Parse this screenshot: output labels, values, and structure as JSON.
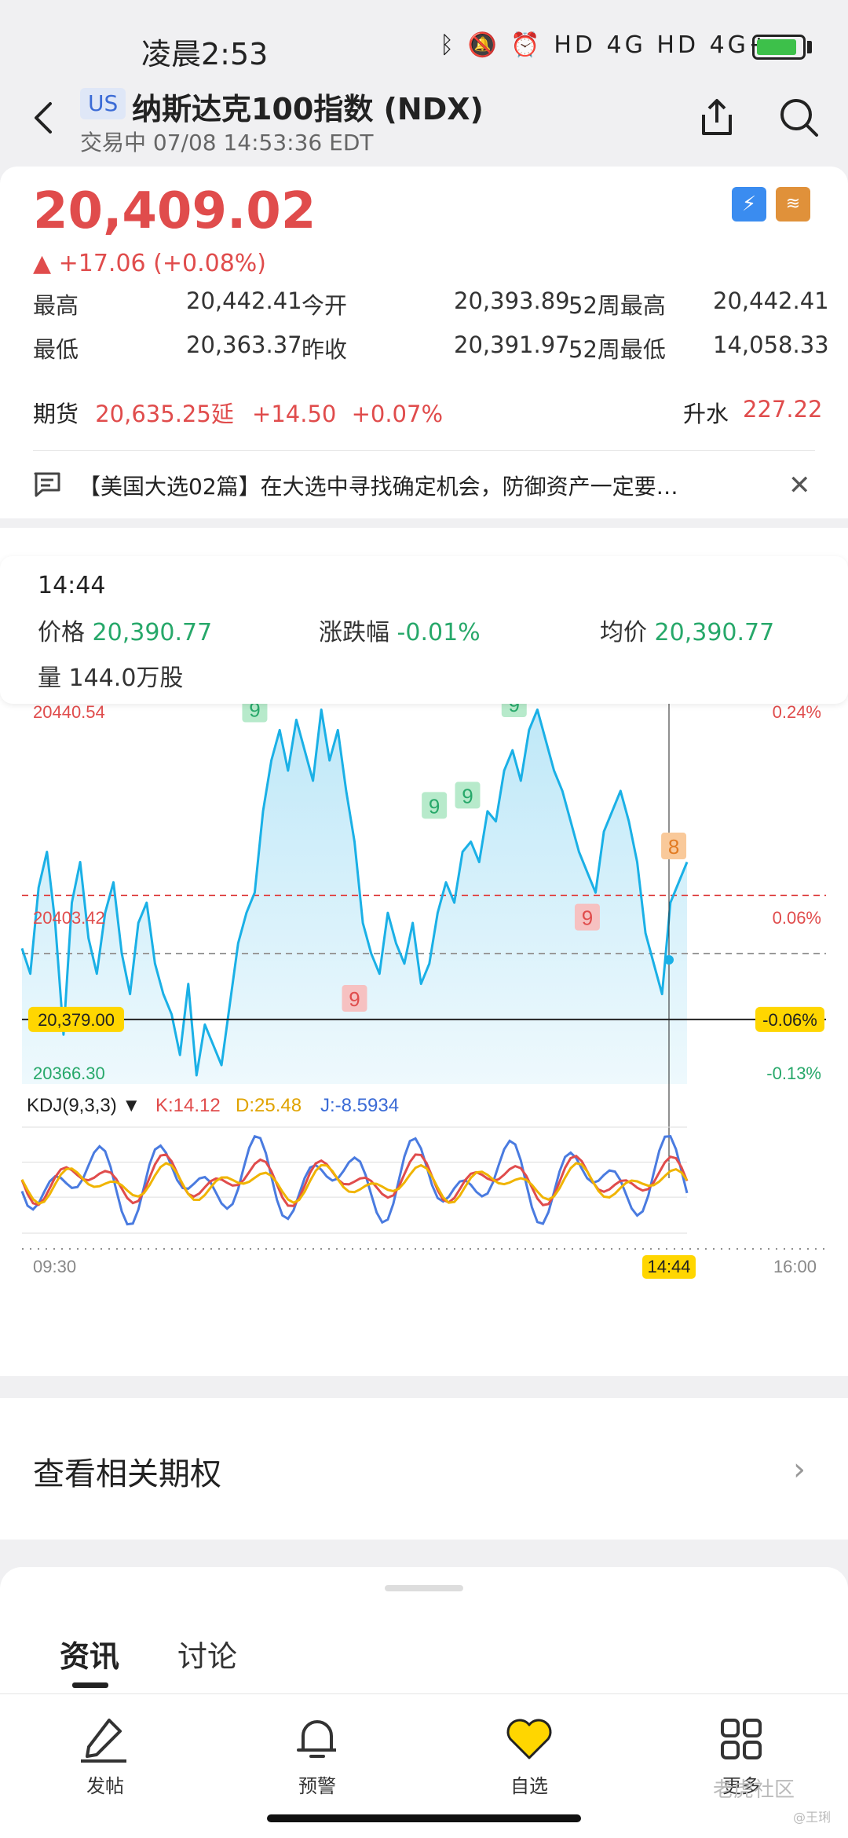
{
  "status_bar": {
    "time": "凌晨2:53",
    "icons": "ᛒ 🔕 ⏰ HD 4G HD 4G+"
  },
  "header": {
    "market_badge": "US",
    "title": "纳斯达克100指数 (NDX)",
    "subtitle": "交易中 07/08 14:53:36 EDT"
  },
  "quote": {
    "price": "20,409.02",
    "change": "▲ +17.06 (+0.08%)",
    "badge1": "⚡",
    "badge2": "≋",
    "stats": [
      {
        "l1": "最高",
        "v1": "20,442.41",
        "l2": "今开",
        "v2": "20,393.89",
        "l3": "52周最高",
        "v3": "20,442.41"
      },
      {
        "l1": "最低",
        "v1": "20,363.37",
        "l2": "昨收",
        "v2": "20,391.97",
        "l3": "52周最低",
        "v3": "14,058.33"
      }
    ],
    "futures_label": "期货",
    "futures_value": "20,635.25延",
    "futures_change": "+14.50",
    "futures_pct": "+0.07%",
    "premium_label": "升水",
    "premium_value": "227.22"
  },
  "news": {
    "text": "【美国大选02篇】在大选中寻找确定机会，防御资产一定要…"
  },
  "tooltip": {
    "time": "14:44",
    "price_label": "价格",
    "price_value": "20,390.77",
    "pct_label": "涨跌幅",
    "pct_value": "-0.01%",
    "avg_label": "均价",
    "avg_value": "20,390.77",
    "volume": "量 144.0万股"
  },
  "chart_data": {
    "type": "line",
    "axis_labels": {
      "y_top_left": "20440.54",
      "y_mid_left": "20403.42",
      "y_bottom_left": "20366.30",
      "y_top_right": "0.24%",
      "y_mid_right": "0.06%",
      "y_bottom_right": "-0.13%",
      "cursor_price": "20,379.00",
      "cursor_pct": "-0.06%",
      "x_start": "09:30",
      "x_cursor": "14:44",
      "x_end": "16:00"
    },
    "ylim": [
      20366.3,
      20440.54
    ],
    "reference_price": 20391.97,
    "avg_line": 20403.42,
    "cursor_value": 20379.0,
    "signals": [
      {
        "label": "9",
        "kind": "up",
        "x": 0.35,
        "y": 20440
      },
      {
        "label": "9",
        "kind": "down",
        "x": 0.5,
        "y": 20383
      },
      {
        "label": "9",
        "kind": "up",
        "x": 0.62,
        "y": 20421
      },
      {
        "label": "9",
        "kind": "up",
        "x": 0.67,
        "y": 20423
      },
      {
        "label": "9",
        "kind": "up",
        "x": 0.74,
        "y": 20441
      },
      {
        "label": "9",
        "kind": "down",
        "x": 0.85,
        "y": 20399
      },
      {
        "label": "8",
        "kind": "orange",
        "x": 0.98,
        "y": 20413
      }
    ],
    "series": [
      {
        "values": [
          20393,
          20388,
          20405,
          20412,
          20398,
          20376,
          20402,
          20410,
          20395,
          20388,
          20400,
          20406,
          20392,
          20384,
          20398,
          20402,
          20390,
          20384,
          20380,
          20372,
          20386,
          20368,
          20378,
          20374,
          20370,
          20382,
          20394,
          20400,
          20404,
          20420,
          20430,
          20436,
          20428,
          20438,
          20432,
          20426,
          20440,
          20430,
          20436,
          20424,
          20414,
          20398,
          20392,
          20388,
          20400,
          20394,
          20390,
          20398,
          20386,
          20390,
          20400,
          20406,
          20402,
          20412,
          20414,
          20410,
          20420,
          20418,
          20428,
          20432,
          20426,
          20436,
          20440,
          20434,
          20428,
          20424,
          20418,
          20412,
          20408,
          20404,
          20416,
          20420,
          20424,
          20418,
          20410,
          20396,
          20390,
          20384,
          20402,
          20406,
          20410
        ]
      }
    ],
    "kdj": {
      "title": "KDJ(9,3,3) ▼",
      "k": "K:14.12",
      "d": "D:25.48",
      "j": "J:-8.5934"
    }
  },
  "options": {
    "title": "查看相关期权"
  },
  "tabs": [
    {
      "label": "资讯"
    },
    {
      "label": "讨论"
    }
  ],
  "nav": [
    {
      "label": "发帖"
    },
    {
      "label": "预警"
    },
    {
      "label": "自选"
    },
    {
      "label": "更多"
    }
  ],
  "watermark": "老虎社区",
  "watermark_user": "@王琍",
  "colors": {
    "up": "#e04c4c",
    "down": "#27a86a",
    "line": "#1ab0e6",
    "accent": "#ffd600"
  }
}
